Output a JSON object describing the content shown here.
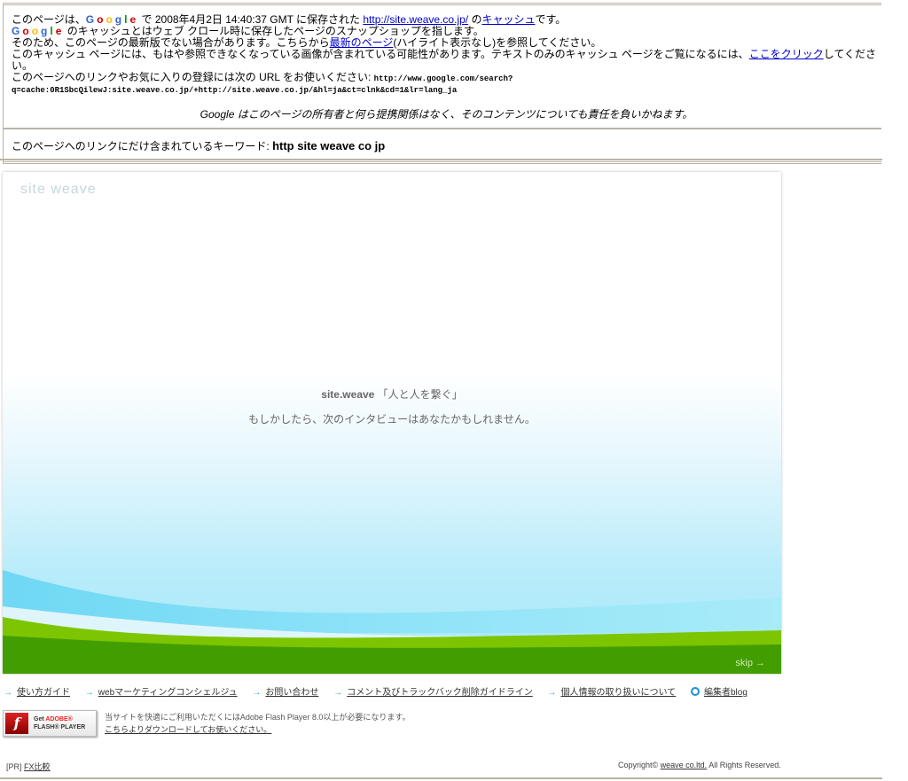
{
  "cache_header": {
    "line1_prefix": "このページは、",
    "google_letters": [
      "G",
      "o",
      "o",
      "g",
      "l",
      "e"
    ],
    "google_colors": [
      "#3366cc",
      "#cc0000",
      "#ffbb00",
      "#3366cc",
      "#009900",
      "#cc0000"
    ],
    "line1_mid": " で 2008年4月2日 14:40:37 GMT に保存された ",
    "cached_url": "http://site.weave.co.jp/",
    "line1_of": " の",
    "cache_link": "キャッシュ",
    "line1_end": "です。",
    "line2_text": " のキャッシュとはウェブ クロール時に保存したページのスナップショップを指します。",
    "line3_prefix": "そのため、このページの最新版でない場合があります。こちらから",
    "latest_link": "最新のページ",
    "line3_end": "(ハイライト表示なし)を参照してください。",
    "line4_prefix": "このキャッシュ ページには、もはや参照できなくなっている画像が含まれている可能性があります。テキストのみのキャッシュ ページをご覧になるには、",
    "click_link": "ここをクリック",
    "line4_end": "してください。",
    "line5_prefix": "このページへのリンクやお気に入りの登録には次の URL をお使いください: ",
    "bookmark_url_1": "http://www.google.com/search?",
    "bookmark_url_2": "q=cache:0R1SbcQilewJ:site.weave.co.jp/+http://site.weave.co.jp/&hl=ja&ct=clnk&cd=1&lr=lang_ja",
    "disclaimer": "Google はこのページの所有者と何ら提携関係はなく、そのコンテンツについても責任を負いかねます。",
    "keywords_label": "このページへのリンクにだけ含まれているキーワード: ",
    "keywords": "http site weave co jp"
  },
  "flash": {
    "logo": "site weave",
    "tagline_brand": "site.weave",
    "tagline_quote": " 「人と人を繋ぐ」",
    "subline": "もしかしたら、次のインタビューはあなたかもしれません。",
    "skip": "skip →",
    "colors": {
      "sky": "#a5e8f8",
      "light_green": "#7dc500",
      "dark_green": "#429e00"
    }
  },
  "nav": {
    "arrow": "→",
    "items": [
      "使い方ガイド",
      "webマーケティングコンシェルジュ",
      "お問い合わせ",
      "コメント及びトラックバック削除ガイドライン",
      "個人情報の取り扱いについて"
    ],
    "blog": "編集者blog"
  },
  "get_flash": {
    "get": "Get ",
    "adobe": "ADOBE®",
    "player": "FLASH® PLAYER",
    "logo_letter": "f"
  },
  "flash_msg": {
    "line1": "当サイトを快適にご利用いただくにはAdobe Flash Player 8.0以上が必要になります。",
    "line2": "こちらよりダウンロードしてお使いください。"
  },
  "footer": {
    "pr": "[PR] ",
    "fx": "FX比較",
    "copyright_prefix": "Copyright© ",
    "company": "weave co.ltd.",
    "copyright_suffix": " All Rights Reserved."
  }
}
